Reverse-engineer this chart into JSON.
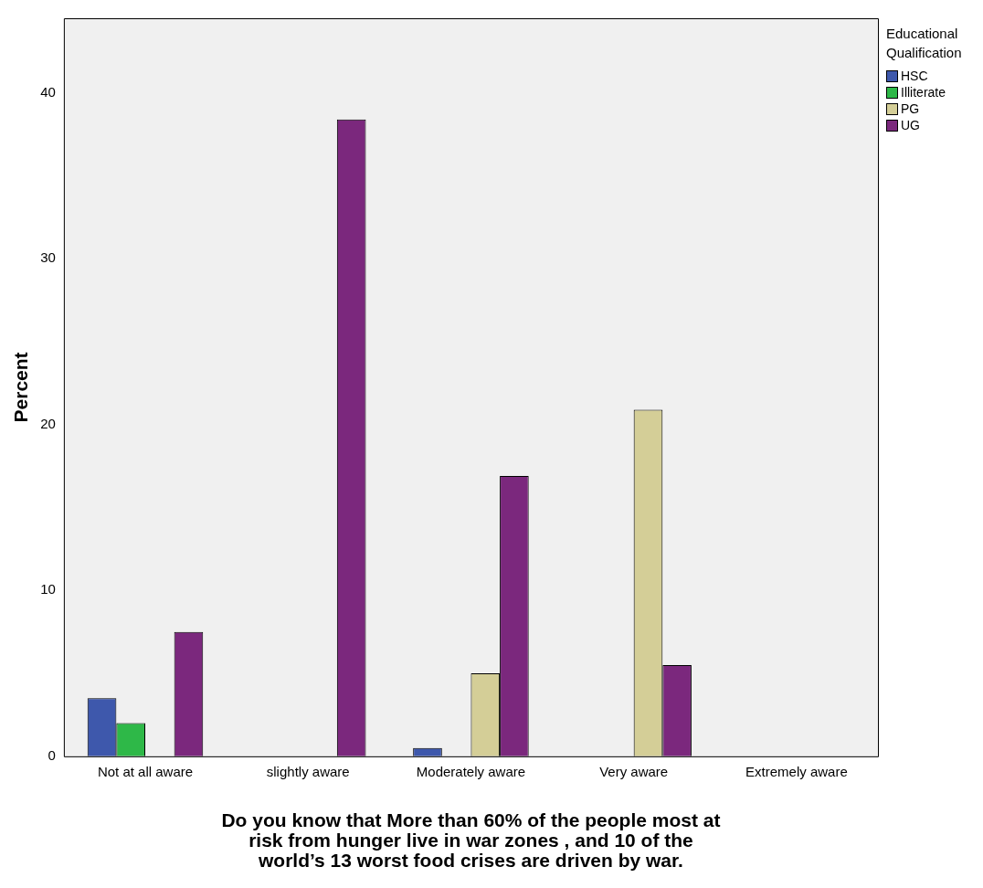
{
  "chart_data": {
    "type": "bar",
    "xlabel": "Do you know that More than 60% of the people most at risk from hunger live in war zones , and 10 of the world’s 13 worst food crises are driven by war.",
    "ylabel": "Percent",
    "legend_title": "Educational Qualification",
    "legend": "top right",
    "grid": false,
    "categories": [
      "Not at all aware",
      "slightly aware",
      "Moderately aware",
      "Very aware",
      "Extremely aware"
    ],
    "series": [
      {
        "name": "HSC",
        "color": "#3e58ac",
        "values": [
          3.5,
          null,
          0.5,
          null,
          null
        ]
      },
      {
        "name": "Illiterate",
        "color": "#2eb848",
        "values": [
          2.0,
          null,
          null,
          null,
          null
        ]
      },
      {
        "name": "PG",
        "color": "#d4ce97",
        "values": [
          null,
          null,
          5.0,
          20.9,
          null
        ]
      },
      {
        "name": "UG",
        "color": "#7b287d",
        "values": [
          7.5,
          38.4,
          16.9,
          5.5,
          null
        ]
      }
    ],
    "ylim": [
      0,
      44.5
    ],
    "yticks": [
      0,
      10,
      20,
      30,
      40
    ]
  }
}
